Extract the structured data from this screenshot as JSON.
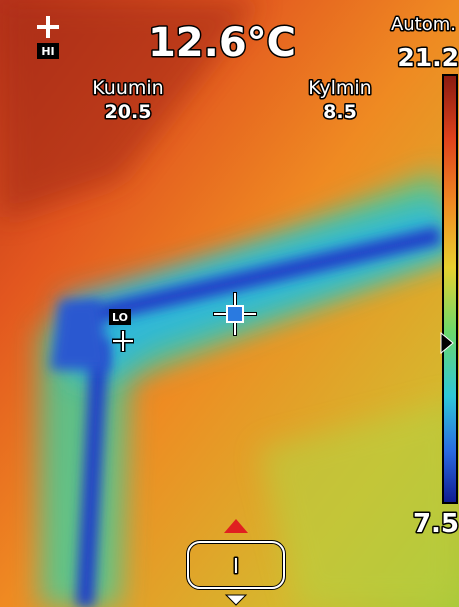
{
  "header": {
    "hi_label": "HI",
    "center_temperature": "12.6°C",
    "range_mode": "Autom.",
    "range_max": "21.2"
  },
  "readouts": [
    {
      "label": "Kuumin",
      "value": "20.5"
    },
    {
      "label": "Kylmin",
      "value": "8.5"
    }
  ],
  "scale": {
    "min": "7.5"
  },
  "markers": {
    "lo_label": "LO"
  },
  "bottom": {
    "mode_button": "I"
  }
}
